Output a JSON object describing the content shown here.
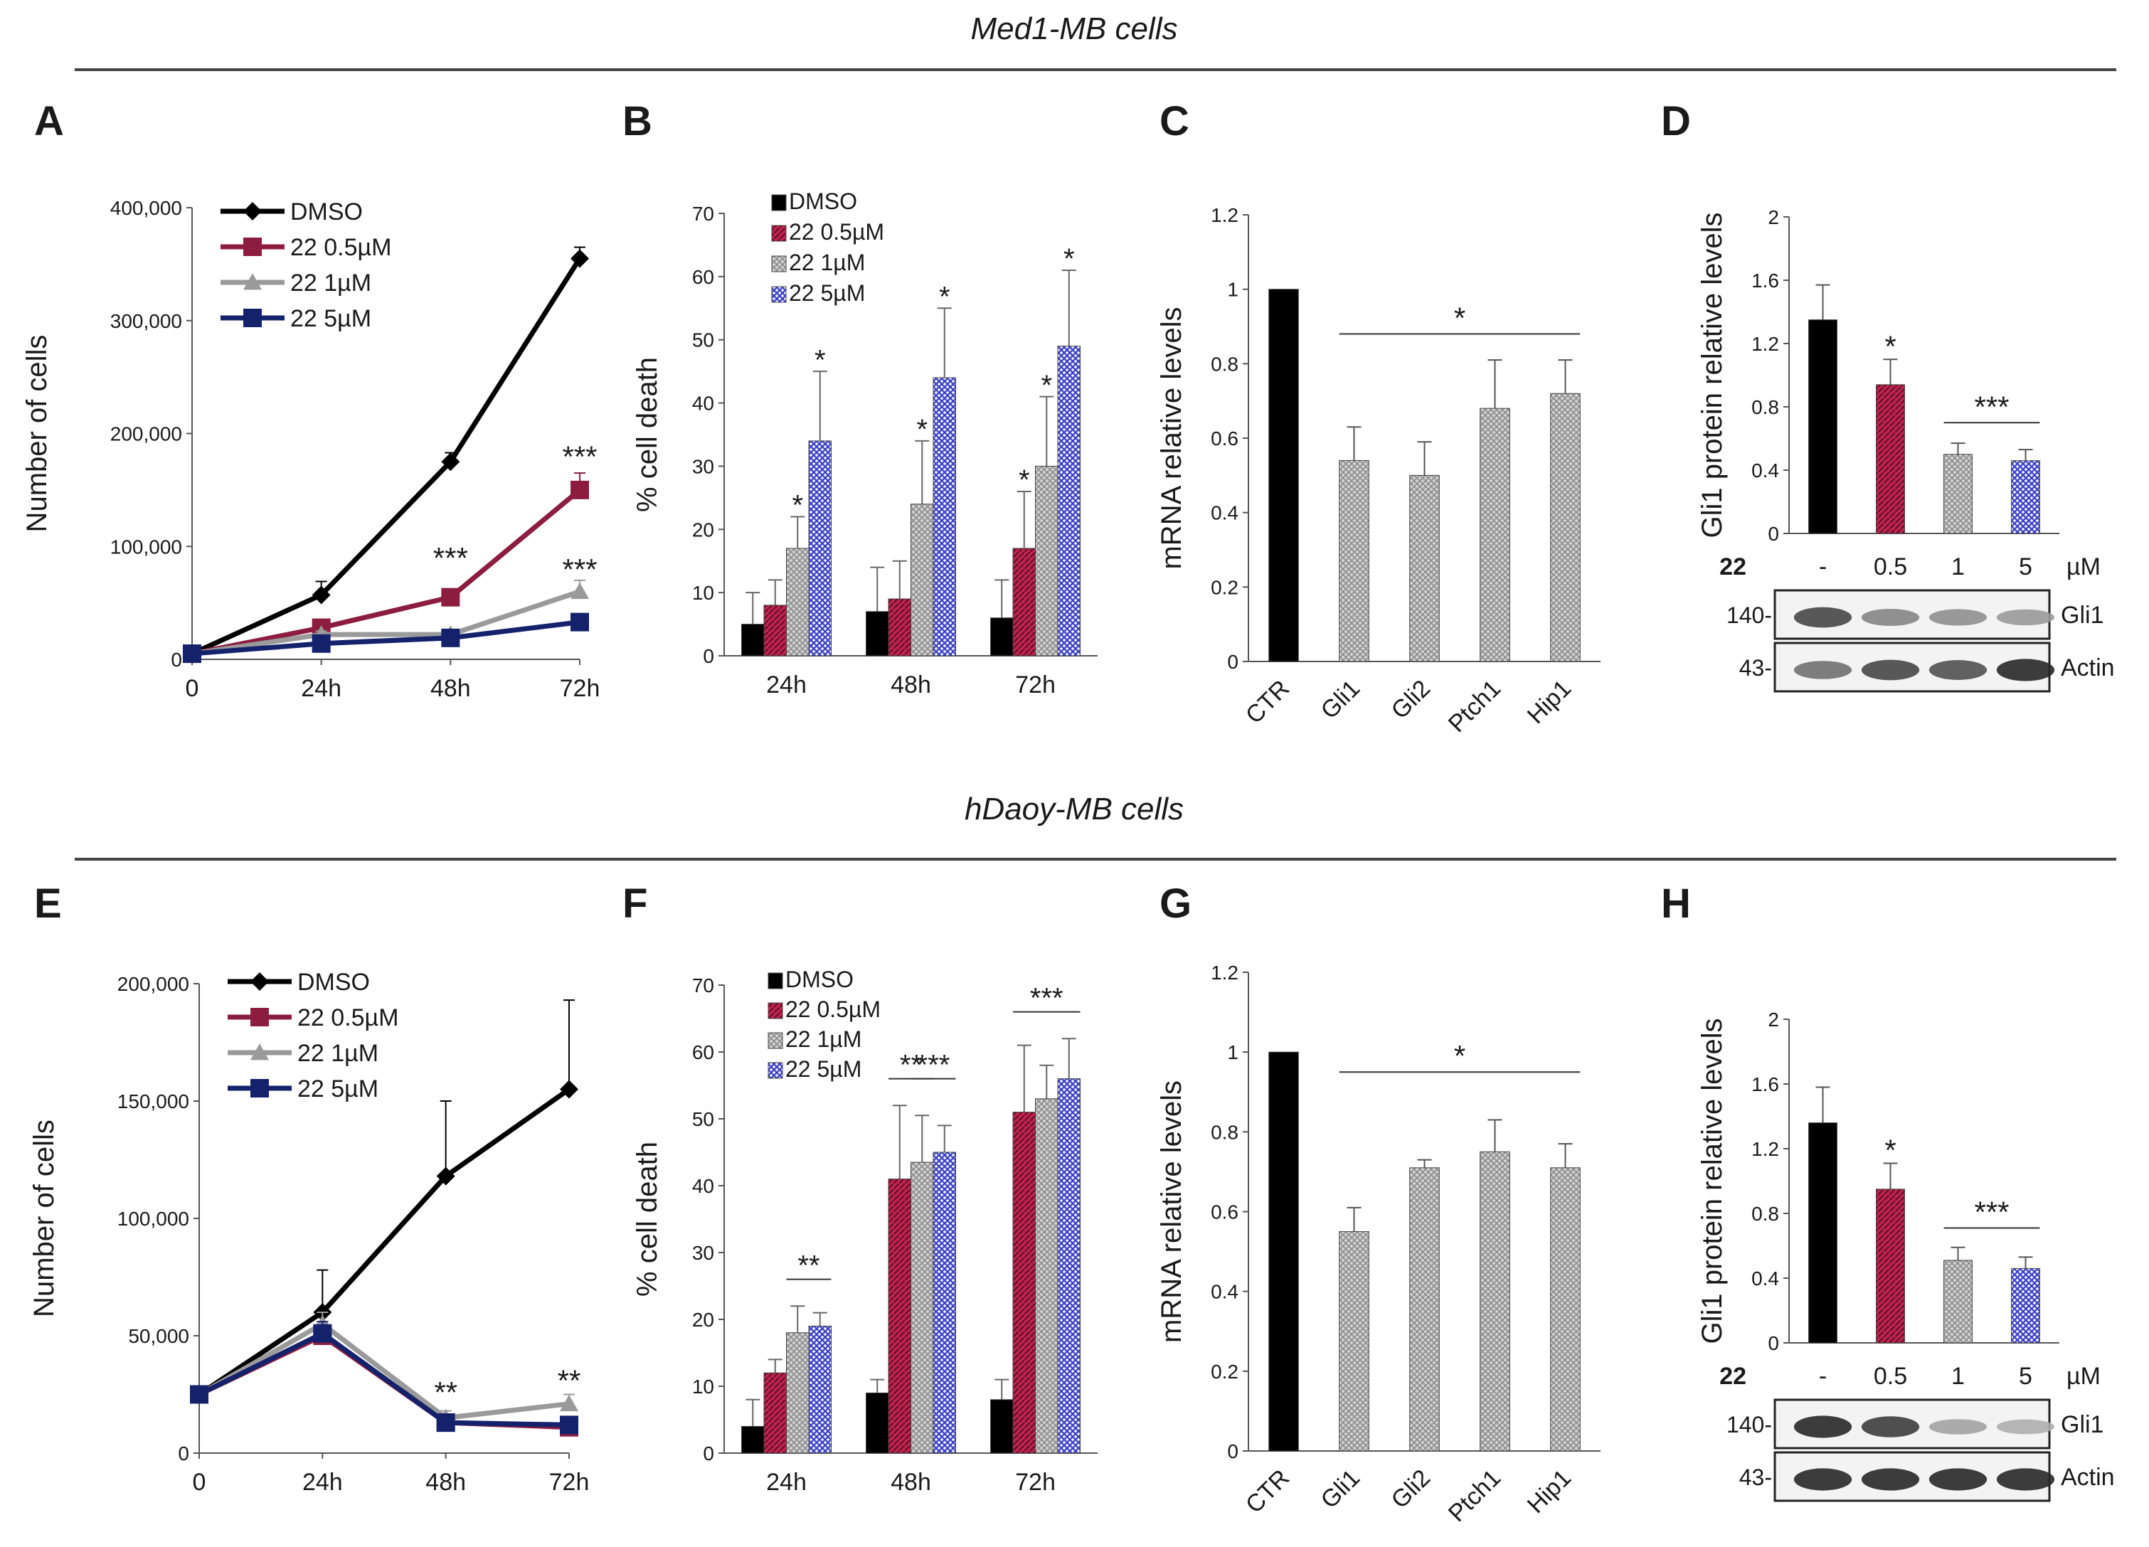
{
  "figure": {
    "section_top_title": "Med1-MB cells",
    "section_bottom_title": "hDaoy-MB cells"
  },
  "chart_data": [
    {
      "id": "A",
      "panel_letter": "A",
      "type": "line",
      "x": [
        "0",
        "24h",
        "48h",
        "72h"
      ],
      "ylabel": "Number of cells",
      "ylim": [
        0,
        400000
      ],
      "yticks": [
        0,
        100000,
        200000,
        300000,
        400000
      ],
      "ytick_labels": [
        "0",
        "100,000",
        "200,000",
        "300,000",
        "400,000"
      ],
      "series": [
        {
          "name": "DMSO",
          "color": "#000000",
          "marker": "diamond",
          "values": [
            5000,
            57000,
            175000,
            355000
          ],
          "errors": [
            2000,
            12000,
            8000,
            10000
          ]
        },
        {
          "name": "22 0.5µM",
          "color": "#8c1d40",
          "marker": "square",
          "values": [
            5000,
            28000,
            55000,
            150000
          ],
          "errors": [
            2000,
            5000,
            5000,
            15000
          ]
        },
        {
          "name": "22 1µM",
          "color": "#9a9a9a",
          "marker": "triangle",
          "values": [
            5000,
            22000,
            22000,
            60000
          ],
          "errors": [
            1500,
            3000,
            3000,
            10000
          ]
        },
        {
          "name": "22 5µM",
          "color": "#14216b",
          "marker": "square",
          "values": [
            5000,
            14000,
            19000,
            33000
          ],
          "errors": [
            1500,
            2000,
            2000,
            4000
          ]
        }
      ],
      "annotations": [
        {
          "text": "***",
          "x": "48h",
          "y": 90000
        },
        {
          "text": "***",
          "x": "72h",
          "y": 180000
        },
        {
          "text": "***",
          "x": "72h",
          "y": 80000
        }
      ]
    },
    {
      "id": "B",
      "panel_letter": "B",
      "type": "bar",
      "categories": [
        "24h",
        "48h",
        "72h"
      ],
      "ylabel": "% cell death",
      "ylim": [
        0,
        70
      ],
      "yticks": [
        0,
        10,
        20,
        30,
        40,
        50,
        60,
        70
      ],
      "series": [
        {
          "name": "DMSO",
          "color": "#000000",
          "pattern": "solid",
          "values": [
            5,
            7,
            6
          ],
          "errors": [
            5,
            7,
            6
          ]
        },
        {
          "name": "22 0.5µM",
          "color": "#b01c4a",
          "pattern": "crimson",
          "values": [
            8,
            9,
            17
          ],
          "errors": [
            4,
            6,
            9
          ]
        },
        {
          "name": "22 1µM",
          "color": "#bdbdbd",
          "pattern": "gray",
          "values": [
            17,
            24,
            30
          ],
          "errors": [
            5,
            10,
            11
          ]
        },
        {
          "name": "22 5µM",
          "color": "#4a4ac8",
          "pattern": "blue",
          "values": [
            34,
            44,
            49
          ],
          "errors": [
            11,
            11,
            12
          ]
        }
      ],
      "annotations": [
        {
          "text": "*",
          "category": 0,
          "series": 2,
          "y": 24
        },
        {
          "text": "*",
          "category": 0,
          "series": 3,
          "y": 47
        },
        {
          "text": "*",
          "category": 1,
          "series": 2,
          "y": 36
        },
        {
          "text": "*",
          "category": 1,
          "series": 3,
          "y": 57
        },
        {
          "text": "*",
          "category": 2,
          "series": 1,
          "y": 28
        },
        {
          "text": "*",
          "category": 2,
          "series": 2,
          "y": 43
        },
        {
          "text": "*",
          "category": 2,
          "series": 3,
          "y": 63
        }
      ]
    },
    {
      "id": "C",
      "panel_letter": "C",
      "type": "bar",
      "categories": [
        "CTR",
        "Gli1",
        "Gli2",
        "Ptch1",
        "Hip1"
      ],
      "ylabel": "mRNA relative levels",
      "ylim": [
        0,
        1.2
      ],
      "yticks": [
        0,
        0.2,
        0.4,
        0.6,
        0.8,
        1,
        1.2
      ],
      "values": [
        1.0,
        0.54,
        0.5,
        0.68,
        0.72
      ],
      "errors": [
        0,
        0.09,
        0.09,
        0.13,
        0.09
      ],
      "bar_patterns": [
        "black",
        "gray",
        "gray",
        "gray",
        "gray"
      ],
      "annotations": [
        {
          "text": "*",
          "from": 1,
          "to": 4,
          "y": 0.88
        }
      ]
    },
    {
      "id": "D",
      "panel_letter": "D",
      "type": "bar",
      "categories": [
        "-",
        "0.5",
        "1",
        "5"
      ],
      "treatment_label": "22",
      "unit_label": "µM",
      "ylabel": "Gli1 protein relative levels",
      "ylim": [
        0,
        2
      ],
      "yticks": [
        0,
        0.4,
        0.8,
        1.2,
        1.6,
        2
      ],
      "values": [
        1.35,
        0.94,
        0.5,
        0.46
      ],
      "errors": [
        0.22,
        0.16,
        0.07,
        0.07
      ],
      "bar_patterns": [
        "black",
        "crimson",
        "gray",
        "blue"
      ],
      "annotations": [
        {
          "text": "*",
          "from": 1,
          "to": 1,
          "y": 1.17
        },
        {
          "text": "***",
          "from": 2,
          "to": 3,
          "y": 0.7
        }
      ],
      "blot_rows": [
        {
          "band": "Gli1",
          "marker": "140-",
          "intensities": [
            0.8,
            0.5,
            0.45,
            0.4
          ]
        },
        {
          "band": "Actin",
          "marker": "43-",
          "intensities": [
            0.6,
            0.8,
            0.75,
            0.95
          ]
        }
      ]
    },
    {
      "id": "E",
      "panel_letter": "E",
      "type": "line",
      "x": [
        "0",
        "24h",
        "48h",
        "72h"
      ],
      "ylabel": "Number of cells",
      "ylim": [
        0,
        200000
      ],
      "yticks": [
        0,
        50000,
        100000,
        150000,
        200000
      ],
      "ytick_labels": [
        "0",
        "50,000",
        "100,000",
        "150,000",
        "200,000"
      ],
      "series": [
        {
          "name": "DMSO",
          "color": "#000000",
          "marker": "diamond",
          "values": [
            25000,
            60000,
            118000,
            155000
          ],
          "errors": [
            2000,
            18000,
            32000,
            38000
          ]
        },
        {
          "name": "22 0.5µM",
          "color": "#8c1d40",
          "marker": "square",
          "values": [
            25000,
            50000,
            13000,
            11000
          ],
          "errors": [
            2000,
            5000,
            3000,
            3000
          ]
        },
        {
          "name": "22 1µM",
          "color": "#9a9a9a",
          "marker": "triangle",
          "values": [
            25000,
            55000,
            15000,
            21000
          ],
          "errors": [
            2000,
            5000,
            3000,
            4000
          ]
        },
        {
          "name": "22 5µM",
          "color": "#14216b",
          "marker": "square",
          "values": [
            25000,
            51000,
            13000,
            12000
          ],
          "errors": [
            2000,
            5000,
            3000,
            3000
          ]
        }
      ],
      "annotations": [
        {
          "text": "**",
          "x": "48h",
          "y": 26000
        },
        {
          "text": "**",
          "x": "72h",
          "y": 31000
        }
      ]
    },
    {
      "id": "F",
      "panel_letter": "F",
      "type": "bar",
      "categories": [
        "24h",
        "48h",
        "72h"
      ],
      "ylabel": "% cell death",
      "ylim": [
        0,
        70
      ],
      "yticks": [
        0,
        10,
        20,
        30,
        40,
        50,
        60,
        70
      ],
      "series": [
        {
          "name": "DMSO",
          "color": "#000000",
          "pattern": "solid",
          "values": [
            4,
            9,
            8
          ],
          "errors": [
            4,
            2,
            3
          ]
        },
        {
          "name": "22 0.5µM",
          "color": "#b01c4a",
          "pattern": "crimson",
          "values": [
            12,
            41,
            51
          ],
          "errors": [
            2,
            11,
            10
          ]
        },
        {
          "name": "22 1µM",
          "color": "#bdbdbd",
          "pattern": "gray",
          "values": [
            18,
            43.5,
            53
          ],
          "errors": [
            4,
            7,
            5
          ]
        },
        {
          "name": "22 5µM",
          "color": "#4a4ac8",
          "pattern": "blue",
          "values": [
            19,
            45,
            56
          ],
          "errors": [
            2,
            4,
            6
          ]
        }
      ],
      "annotations": [
        {
          "text": "**",
          "from_cat": 0,
          "from_series": 2,
          "to_cat": 0,
          "to_series": 3,
          "y": 26
        },
        {
          "text": "**",
          "from_cat": 1,
          "from_series": 1,
          "to_cat": 1,
          "to_series": 2,
          "y": 56
        },
        {
          "text": "***",
          "from_cat": 1,
          "from_series": 2,
          "to_cat": 1,
          "to_series": 3,
          "y": 56
        },
        {
          "text": "***",
          "from_cat": 2,
          "from_series": 1,
          "to_cat": 2,
          "to_series": 3,
          "y": 66
        }
      ]
    },
    {
      "id": "G",
      "panel_letter": "G",
      "type": "bar",
      "categories": [
        "CTR",
        "Gli1",
        "Gli2",
        "Ptch1",
        "Hip1"
      ],
      "ylabel": "mRNA relative levels",
      "ylim": [
        0,
        1.2
      ],
      "yticks": [
        0,
        0.2,
        0.4,
        0.6,
        0.8,
        1,
        1.2
      ],
      "values": [
        1.0,
        0.55,
        0.71,
        0.75,
        0.71
      ],
      "errors": [
        0,
        0.06,
        0.02,
        0.08,
        0.06
      ],
      "bar_patterns": [
        "black",
        "gray",
        "gray",
        "gray",
        "gray"
      ],
      "annotations": [
        {
          "text": "*",
          "from": 1,
          "to": 4,
          "y": 0.95
        }
      ]
    },
    {
      "id": "H",
      "panel_letter": "H",
      "type": "bar",
      "categories": [
        "-",
        "0.5",
        "1",
        "5"
      ],
      "treatment_label": "22",
      "unit_label": "µM",
      "ylabel": "Gli1 protein relative levels",
      "ylim": [
        0,
        2
      ],
      "yticks": [
        0,
        0.4,
        0.8,
        1.2,
        1.6,
        2
      ],
      "values": [
        1.36,
        0.95,
        0.51,
        0.46
      ],
      "errors": [
        0.22,
        0.16,
        0.08,
        0.07
      ],
      "bar_patterns": [
        "black",
        "crimson",
        "gray",
        "blue"
      ],
      "annotations": [
        {
          "text": "*",
          "from": 1,
          "to": 1,
          "y": 1.18
        },
        {
          "text": "***",
          "from": 2,
          "to": 3,
          "y": 0.71
        }
      ],
      "blot_rows": [
        {
          "band": "Gli1",
          "marker": "140-",
          "intensities": [
            0.95,
            0.85,
            0.35,
            0.3
          ]
        },
        {
          "band": "Actin",
          "marker": "43-",
          "intensities": [
            0.95,
            0.95,
            0.95,
            0.95
          ]
        }
      ]
    }
  ]
}
